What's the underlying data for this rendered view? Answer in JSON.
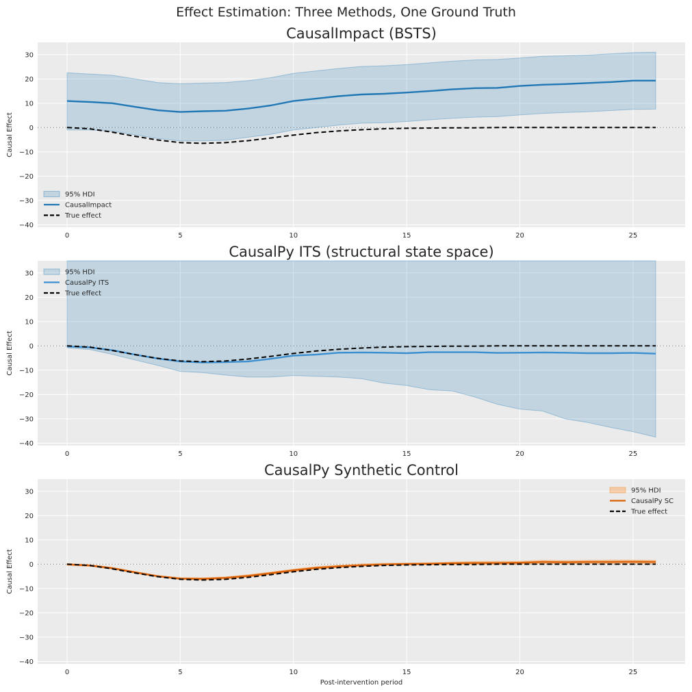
{
  "figure": {
    "suptitle": "Effect Estimation: Three Methods, One Ground Truth"
  },
  "chart_data": [
    {
      "type": "line",
      "title": "CausalImpact (BSTS)",
      "xlabel": "",
      "ylabel": "Causal Effect",
      "xlim": [
        -1.3,
        27.3
      ],
      "ylim": [
        -41,
        35
      ],
      "xticks": [
        0,
        5,
        10,
        15,
        20,
        25
      ],
      "yticks": [
        -40,
        -30,
        -20,
        -10,
        0,
        10,
        20,
        30
      ],
      "grid": true,
      "zero_line": true,
      "legend_loc": "lower-left",
      "x": [
        0,
        1,
        2,
        3,
        4,
        5,
        6,
        7,
        8,
        9,
        10,
        11,
        12,
        13,
        14,
        15,
        16,
        17,
        18,
        19,
        20,
        21,
        22,
        23,
        24,
        25,
        26
      ],
      "series": [
        {
          "name": "95% HDI",
          "kind": "band",
          "color": "#1f77b4",
          "lower": [
            -1,
            -1,
            -1.5,
            -3,
            -4.5,
            -5.5,
            -5.5,
            -5.2,
            -4,
            -2.8,
            -1,
            0,
            1,
            1.8,
            2,
            2.5,
            3.2,
            3.8,
            4.3,
            4.5,
            5.2,
            5.8,
            6.2,
            6.5,
            7,
            7.5,
            7.6
          ],
          "upper": [
            22.5,
            22,
            21.5,
            20,
            18.5,
            18,
            18.3,
            18.5,
            19.3,
            20.5,
            22.3,
            23.3,
            24.3,
            25.1,
            25.4,
            25.9,
            26.6,
            27.3,
            27.8,
            28,
            28.6,
            29.3,
            29.5,
            29.8,
            30.3,
            30.8,
            31
          ]
        },
        {
          "name": "CausalImpact",
          "kind": "line",
          "color": "#1f77b4",
          "values": [
            10.9,
            10.5,
            10,
            8.5,
            7.1,
            6.4,
            6.7,
            6.9,
            7.8,
            9.1,
            10.9,
            11.9,
            12.9,
            13.6,
            13.9,
            14.4,
            15,
            15.7,
            16.2,
            16.3,
            17.1,
            17.6,
            17.9,
            18.3,
            18.7,
            19.3,
            19.3
          ]
        },
        {
          "name": "True effect",
          "kind": "dashed",
          "color": "#000000",
          "values": [
            0,
            -0.5,
            -1.9,
            -3.6,
            -5.1,
            -6.2,
            -6.5,
            -6.2,
            -5.4,
            -4.3,
            -3.1,
            -2.1,
            -1.4,
            -0.9,
            -0.5,
            -0.3,
            -0.2,
            -0.1,
            -0.1,
            0,
            0,
            0,
            0,
            0,
            0,
            0,
            0
          ]
        }
      ]
    },
    {
      "type": "line",
      "title": "CausalPy ITS (structural state space)",
      "xlabel": "",
      "ylabel": "Causal Effect",
      "xlim": [
        -1.3,
        27.3
      ],
      "ylim": [
        -41,
        35
      ],
      "xticks": [
        0,
        5,
        10,
        15,
        20,
        25
      ],
      "yticks": [
        -40,
        -30,
        -20,
        -10,
        0,
        10,
        20,
        30
      ],
      "grid": true,
      "zero_line": true,
      "legend_loc": "top-left",
      "x": [
        0,
        1,
        2,
        3,
        4,
        5,
        6,
        7,
        8,
        9,
        10,
        11,
        12,
        13,
        14,
        15,
        16,
        17,
        18,
        19,
        20,
        21,
        22,
        23,
        24,
        25,
        26
      ],
      "series": [
        {
          "name": "95% HDI",
          "kind": "band",
          "color": "#1f77b4",
          "lower": [
            -0.8,
            -1.5,
            -3.5,
            -5.8,
            -8,
            -10.5,
            -11,
            -12,
            -12.8,
            -12.8,
            -12.2,
            -12.5,
            -12.8,
            -13.5,
            -15.3,
            -16.3,
            -18,
            -18.5,
            -21,
            -24,
            -26,
            -26.8,
            -30,
            -31.5,
            -33.5,
            -35.3,
            -37.5
          ]
        },
        {
          "name": "CausalPy ITS",
          "kind": "line",
          "color": "#3b8fd0",
          "values": [
            -0.2,
            -0.6,
            -1.8,
            -3.6,
            -5.2,
            -6.4,
            -6.8,
            -6.7,
            -6.4,
            -5.3,
            -4,
            -3.6,
            -2.8,
            -2.7,
            -2.8,
            -3,
            -2.6,
            -2.6,
            -2.6,
            -2.9,
            -2.8,
            -2.7,
            -2.8,
            -3,
            -3,
            -2.9,
            -3.2
          ]
        },
        {
          "name": "True effect",
          "kind": "dashed",
          "color": "#000000",
          "values": [
            0,
            -0.5,
            -1.9,
            -3.6,
            -5.1,
            -6.2,
            -6.5,
            -6.2,
            -5.4,
            -4.3,
            -3.1,
            -2.1,
            -1.4,
            -0.9,
            -0.5,
            -0.3,
            -0.2,
            -0.1,
            -0.1,
            0,
            0,
            0,
            0,
            0,
            0,
            0,
            0
          ]
        }
      ]
    },
    {
      "type": "line",
      "title": "CausalPy Synthetic Control",
      "xlabel": "Post-intervention period",
      "ylabel": "Causal Effect",
      "xlim": [
        -1.3,
        27.3
      ],
      "ylim": [
        -41,
        35
      ],
      "xticks": [
        0,
        5,
        10,
        15,
        20,
        25
      ],
      "yticks": [
        -40,
        -30,
        -20,
        -10,
        0,
        10,
        20,
        30
      ],
      "grid": true,
      "zero_line": true,
      "legend_loc": "top-right",
      "x": [
        0,
        1,
        2,
        3,
        4,
        5,
        6,
        7,
        8,
        9,
        10,
        11,
        12,
        13,
        14,
        15,
        16,
        17,
        18,
        19,
        20,
        21,
        22,
        23,
        24,
        25,
        26
      ],
      "series": [
        {
          "name": "95% HDI",
          "kind": "band",
          "color": "#ff7f0e",
          "lower": [
            -0.4,
            -0.9,
            -2,
            -3.7,
            -5.2,
            -6.3,
            -6.5,
            -6.1,
            -5.3,
            -4.2,
            -3,
            -2,
            -1.3,
            -0.8,
            -0.4,
            -0.3,
            -0.2,
            -0.1,
            0,
            -0.1,
            0,
            0.2,
            0.1,
            0.2,
            0.2,
            0.3,
            0.2
          ],
          "upper": [
            0.3,
            -0.2,
            -1.3,
            -3,
            -4.6,
            -5.5,
            -5.6,
            -5.2,
            -4.3,
            -3.2,
            -2,
            -1,
            -0.4,
            0.1,
            0.4,
            0.5,
            0.6,
            0.9,
            1.1,
            1.2,
            1.2,
            1.6,
            1.5,
            1.6,
            1.7,
            1.7,
            1.6
          ]
        },
        {
          "name": "CausalPy SC",
          "kind": "line",
          "color": "#d95f02",
          "values": [
            -0.1,
            -0.5,
            -1.6,
            -3.3,
            -4.9,
            -5.9,
            -6,
            -5.6,
            -4.8,
            -3.7,
            -2.5,
            -1.5,
            -0.9,
            -0.4,
            -0.1,
            0.1,
            0.2,
            0.4,
            0.5,
            0.5,
            0.6,
            0.9,
            0.8,
            0.9,
            0.9,
            1,
            0.9
          ]
        },
        {
          "name": "True effect",
          "kind": "dashed",
          "color": "#000000",
          "values": [
            0,
            -0.5,
            -1.9,
            -3.6,
            -5.1,
            -6.2,
            -6.5,
            -6.2,
            -5.4,
            -4.3,
            -3.1,
            -2.1,
            -1.4,
            -0.9,
            -0.5,
            -0.3,
            -0.2,
            -0.1,
            -0.1,
            0,
            0,
            0,
            0,
            0,
            0,
            0,
            0
          ]
        }
      ]
    }
  ]
}
